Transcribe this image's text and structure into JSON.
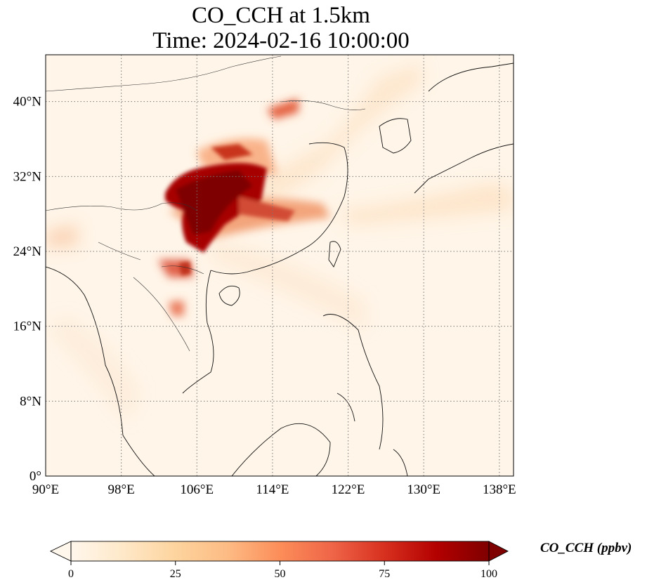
{
  "title": {
    "line1": "CO_CCH at 1.5km",
    "line2": "Time: 2024-02-16 10:00:00"
  },
  "map": {
    "variable": "CO_CCH",
    "level": "1.5km",
    "projection": "PlateCarree",
    "lon_range": [
      90,
      139.5
    ],
    "lat_range": [
      0,
      45
    ],
    "gridlines": "dotted",
    "lon_ticks": [
      "90°E",
      "98°E",
      "106°E",
      "114°E",
      "122°E",
      "130°E",
      "138°E"
    ],
    "lat_ticks": [
      "0°",
      "8°N",
      "16°N",
      "24°N",
      "32°N",
      "40°N"
    ],
    "high_concentration_region": "Sichuan Basin / Chongqing / Guizhou (roughly 102–110°E, 24–32°N)"
  },
  "colorbar": {
    "label": "CO_CCH (ppbv)",
    "colormap": "OrRd",
    "ticks": [
      "0",
      "25",
      "50",
      "75",
      "100"
    ],
    "range": [
      0,
      100
    ],
    "extend": "both",
    "colors": [
      "#fff7ec",
      "#fee8c8",
      "#fdd49e",
      "#fdbb84",
      "#fc8d59",
      "#ef6548",
      "#d7301f",
      "#b30000",
      "#7f0000"
    ]
  }
}
